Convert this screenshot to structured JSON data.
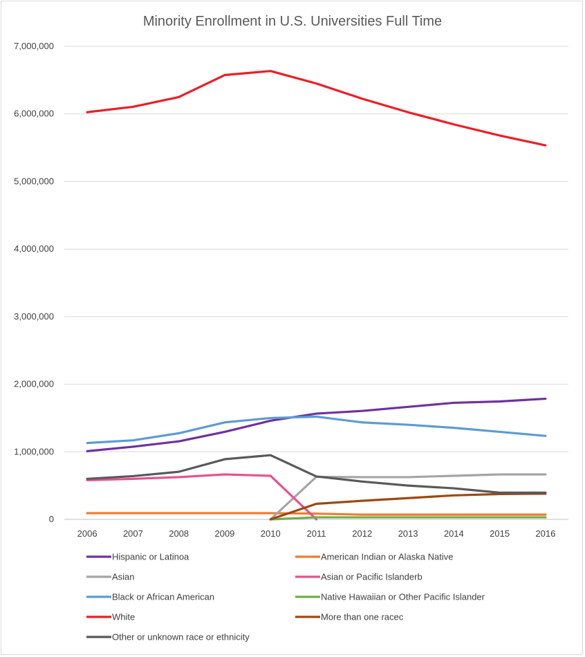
{
  "chart_data": {
    "type": "line",
    "title": "Minority Enrollment in U.S. Universities Full Time",
    "xlabel": "",
    "ylabel": "",
    "ylim": [
      0,
      7000000
    ],
    "y_ticks": [
      "0",
      "1,000,000",
      "2,000,000",
      "3,000,000",
      "4,000,000",
      "5,000,000",
      "6,000,000",
      "7,000,000"
    ],
    "y_tick_values": [
      0,
      1000000,
      2000000,
      3000000,
      4000000,
      5000000,
      6000000,
      7000000
    ],
    "x": [
      "2006",
      "2007",
      "2008",
      "2009",
      "2010",
      "2011",
      "2012",
      "2013",
      "2014",
      "2015",
      "2016"
    ],
    "grid": true,
    "legend_position": "bottom",
    "series": [
      {
        "name": "Hispanic or Latinoa",
        "color": "#7030a0",
        "values": [
          1010000,
          1075000,
          1155000,
          1295000,
          1460000,
          1565000,
          1605000,
          1665000,
          1725000,
          1745000,
          1785000
        ]
      },
      {
        "name": "American Indian or Alaska Native",
        "color": "#ed7d31",
        "values": [
          92000,
          92000,
          92000,
          92000,
          92000,
          85000,
          70000,
          70000,
          70000,
          70000,
          70000
        ]
      },
      {
        "name": "Asian",
        "color": "#a5a5a5",
        "values": [
          null,
          null,
          null,
          null,
          0,
          630000,
          625000,
          625000,
          645000,
          665000,
          665000
        ]
      },
      {
        "name": "Asian or Pacific Islanderb",
        "color": "#e8518a",
        "values": [
          580000,
          600000,
          625000,
          665000,
          645000,
          0,
          null,
          null,
          null,
          null,
          null
        ]
      },
      {
        "name": "Black or African American",
        "color": "#5b9bd5",
        "values": [
          1130000,
          1170000,
          1275000,
          1435000,
          1500000,
          1520000,
          1435000,
          1400000,
          1355000,
          1295000,
          1235000
        ]
      },
      {
        "name": "Native Hawaiian or Other Pacific Islander",
        "color": "#70ad47",
        "values": [
          null,
          null,
          null,
          null,
          0,
          30000,
          30000,
          30000,
          30000,
          30000,
          30000
        ]
      },
      {
        "name": "White",
        "color": "#ee1c24",
        "values": [
          6025000,
          6105000,
          6250000,
          6575000,
          6635000,
          6450000,
          6225000,
          6025000,
          5845000,
          5680000,
          5535000
        ]
      },
      {
        "name": "More than one racec",
        "color": "#9e480e",
        "values": [
          null,
          null,
          null,
          null,
          0,
          230000,
          275000,
          315000,
          355000,
          375000,
          380000
        ]
      },
      {
        "name": "Other or unknown race or ethnicity",
        "color": "#595959",
        "values": [
          600000,
          640000,
          705000,
          890000,
          950000,
          635000,
          560000,
          500000,
          460000,
          395000,
          395000
        ]
      }
    ]
  },
  "colors": {
    "gridline": "#d9d9d9",
    "axis": "#bfbfbf",
    "text": "#404040",
    "title": "#595959"
  }
}
